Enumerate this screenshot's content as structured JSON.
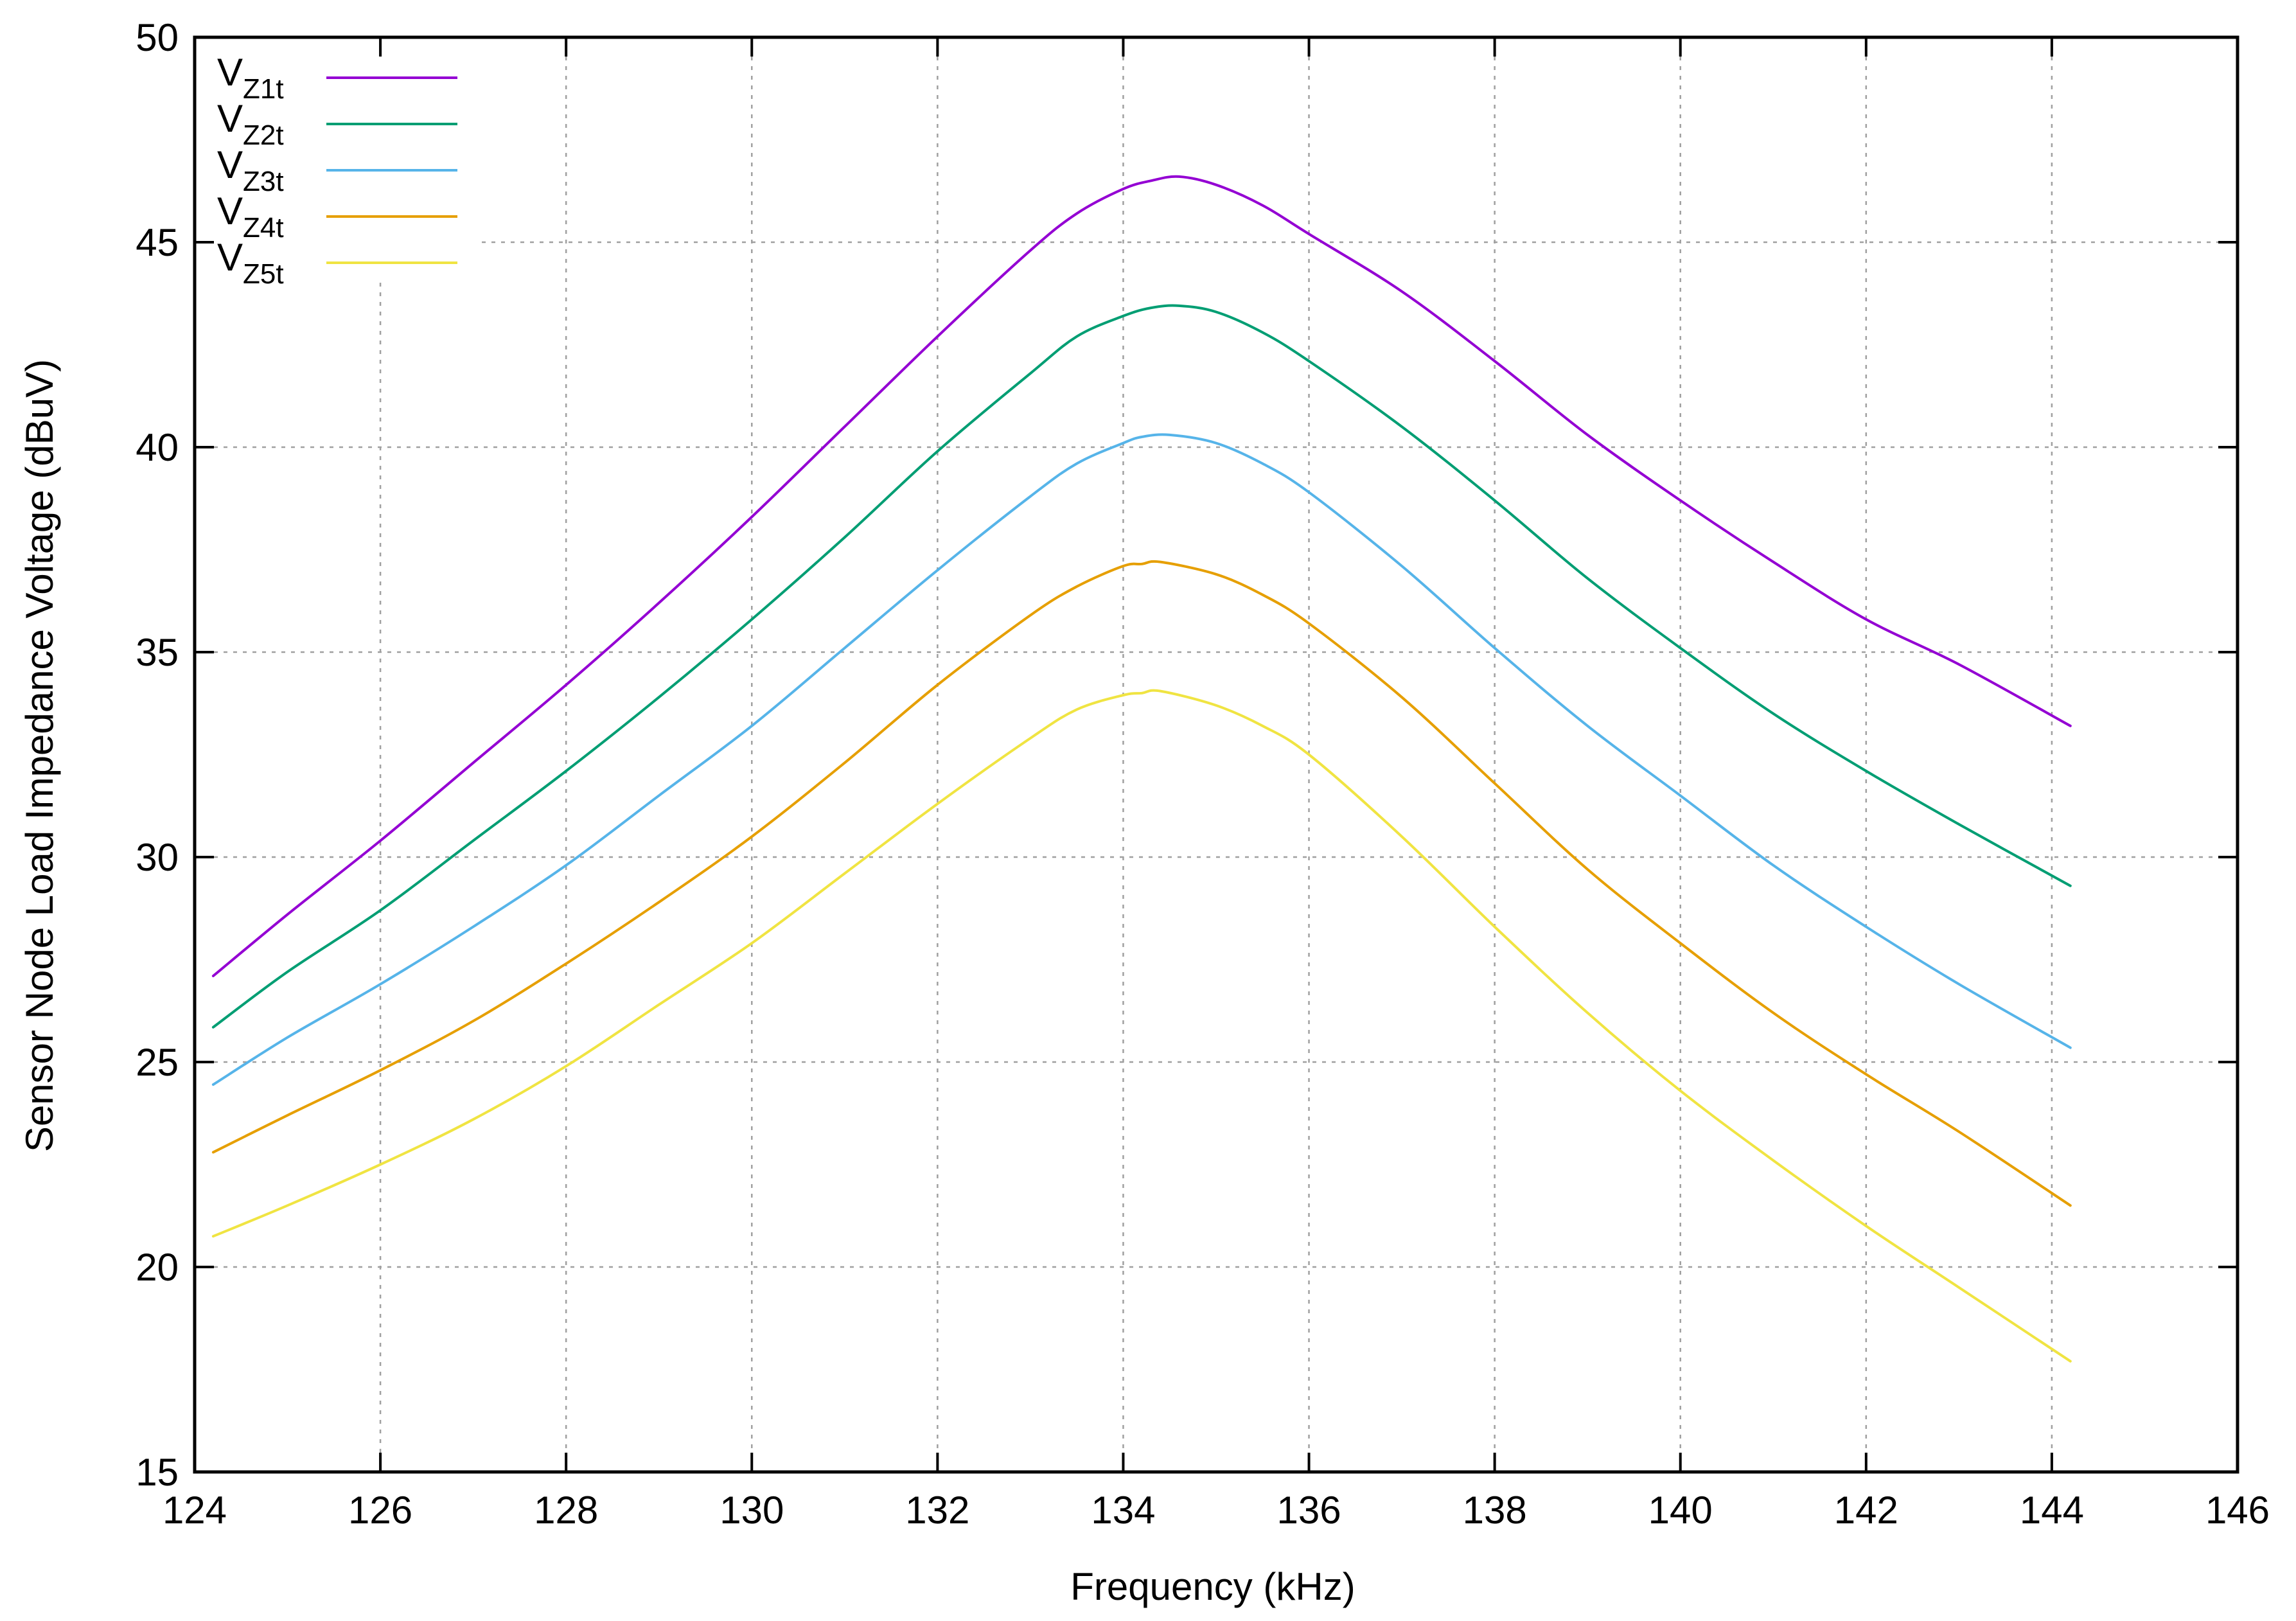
{
  "chart_data": {
    "type": "line",
    "title": "",
    "xlabel": "Frequency (kHz)",
    "ylabel": "Sensor Node Load Impedance Voltage (dBuV)",
    "xlim": [
      124,
      146
    ],
    "ylim": [
      15,
      50
    ],
    "xticks": [
      124,
      126,
      128,
      130,
      132,
      134,
      136,
      138,
      140,
      142,
      144,
      146
    ],
    "yticks": [
      15,
      20,
      25,
      30,
      35,
      40,
      45,
      50
    ],
    "grid": true,
    "legend_position": "top-left",
    "series": [
      {
        "name": "V",
        "subscript": "Z1t",
        "color": "#9400d3",
        "x": [
          124.2,
          125,
          126,
          127,
          128,
          129,
          130,
          131,
          132,
          133,
          133.5,
          134,
          134.3,
          134.6,
          135,
          135.5,
          136,
          137,
          138,
          139,
          140,
          141,
          142,
          143,
          144.2
        ],
        "y": [
          27.1,
          28.6,
          30.4,
          32.3,
          34.2,
          36.2,
          38.3,
          40.5,
          42.7,
          44.8,
          45.7,
          46.3,
          46.5,
          46.6,
          46.4,
          45.9,
          45.2,
          43.8,
          42.1,
          40.3,
          38.7,
          37.2,
          35.8,
          34.7,
          33.2
        ]
      },
      {
        "name": "V",
        "subscript": "Z2t",
        "color": "#009e73",
        "x": [
          124.2,
          125,
          126,
          127,
          128,
          129,
          130,
          131,
          132,
          133,
          133.5,
          134,
          134.3,
          134.6,
          135,
          135.5,
          136,
          137,
          138,
          139,
          140,
          141,
          142,
          143,
          144.2
        ],
        "y": [
          25.85,
          27.2,
          28.7,
          30.4,
          32.1,
          33.9,
          35.8,
          37.8,
          39.9,
          41.8,
          42.7,
          43.2,
          43.4,
          43.45,
          43.3,
          42.8,
          42.1,
          40.5,
          38.7,
          36.8,
          35.1,
          33.5,
          32.1,
          30.8,
          29.3
        ]
      },
      {
        "name": "V",
        "subscript": "Z3t",
        "color": "#56b4e9",
        "x": [
          124.2,
          125,
          126,
          127,
          128,
          129,
          130,
          131,
          132,
          133,
          133.5,
          134,
          134.2,
          134.5,
          135,
          135.5,
          136,
          137,
          138,
          139,
          140,
          141,
          142,
          143,
          144.2
        ],
        "y": [
          24.45,
          25.6,
          26.9,
          28.3,
          29.8,
          31.5,
          33.2,
          35.1,
          37.0,
          38.8,
          39.6,
          40.1,
          40.25,
          40.3,
          40.1,
          39.6,
          38.9,
          37.1,
          35.1,
          33.2,
          31.5,
          29.8,
          28.3,
          26.9,
          25.35
        ]
      },
      {
        "name": "V",
        "subscript": "Z4t",
        "color": "#e69f00",
        "x": [
          124.2,
          125,
          126,
          127,
          128,
          129,
          130,
          131,
          132,
          133,
          133.5,
          134,
          134.2,
          134.4,
          135,
          135.5,
          136,
          137,
          138,
          139,
          140,
          141,
          142,
          143,
          144.2
        ],
        "y": [
          22.8,
          23.7,
          24.8,
          26.0,
          27.4,
          28.9,
          30.5,
          32.3,
          34.2,
          35.9,
          36.6,
          37.1,
          37.15,
          37.2,
          36.9,
          36.4,
          35.7,
          33.9,
          31.8,
          29.7,
          27.9,
          26.2,
          24.7,
          23.3,
          21.5
        ]
      },
      {
        "name": "V",
        "subscript": "Z5t",
        "color": "#f0e442",
        "x": [
          124.2,
          125,
          126,
          127,
          128,
          129,
          130,
          131,
          132,
          133,
          133.5,
          134,
          134.2,
          134.4,
          135,
          135.5,
          136,
          137,
          138,
          139,
          140,
          141,
          142,
          143,
          144.2
        ],
        "y": [
          20.75,
          21.5,
          22.5,
          23.6,
          24.9,
          26.4,
          27.9,
          29.6,
          31.3,
          32.9,
          33.6,
          33.95,
          34.0,
          34.05,
          33.7,
          33.2,
          32.5,
          30.5,
          28.3,
          26.2,
          24.3,
          22.6,
          21.0,
          19.5,
          17.7
        ]
      }
    ]
  }
}
